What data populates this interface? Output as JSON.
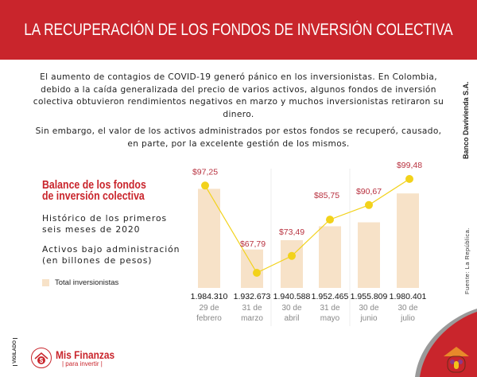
{
  "header": {
    "title": "LA RECUPERACIÓN DE LOS FONDOS DE INVERSIÓN COLECTIVA"
  },
  "intro": {
    "paragraph1": "El aumento de contagios de COVID-19 generó pánico en los inversionistas. En Colombia, debido a la caída generalizada del precio de varios activos, algunos fondos de inversión colectiva obtuvieron rendimientos negativos en marzo y muchos inversionistas retiraron su dinero.",
    "paragraph2": "Sin embargo, el valor de los activos administrados por estos fondos se recuperó, causado, en parte, por la excelente gestión de los mismos."
  },
  "side": {
    "bank": "Banco Davivienda S.A.",
    "source": "Fuente: La República.",
    "vigilado": "VIGILADO"
  },
  "left": {
    "title_line1": "Balance de los fondos",
    "title_line2": "de inversión colectiva",
    "text1_line1": "Histórico de los primeros",
    "text1_line2": "seis meses de 2020",
    "text2_line1": "Activos bajo administración",
    "text2_line2": "(en billones de pesos)",
    "legend": "Total inversionistas"
  },
  "brand": {
    "name": "Mis Finanzas",
    "sub": "|  para invertir  |"
  },
  "colors": {
    "accent": "#c9252c",
    "bar": "#f7e2c8",
    "line": "#f2d21b",
    "value_label": "#b8313f"
  },
  "chart_data": {
    "type": "bar",
    "categories": [
      [
        "29 de",
        "febrero"
      ],
      [
        "31 de",
        "marzo"
      ],
      [
        "30 de",
        "abril"
      ],
      [
        "31 de",
        "mayo"
      ],
      [
        "30 de",
        "junio"
      ],
      [
        "30 de",
        "julio"
      ]
    ],
    "series": [
      {
        "name": "Total inversionistas",
        "type": "bar",
        "values": [
          1984310,
          1932673,
          1940588,
          1952465,
          1955809,
          1980401
        ],
        "labels": [
          "1.984.310",
          "1.932.673",
          "1.940.588",
          "1.952.465",
          "1.955.809",
          "1.980.401"
        ],
        "ylim": [
          1900000,
          1990000
        ]
      },
      {
        "type": "line",
        "values": [
          97.25,
          67.79,
          73.49,
          85.75,
          90.67,
          99.48
        ],
        "labels": [
          "$97,25",
          "$67,79",
          "$73,49",
          "$85,75",
          "$90,67",
          "$99,48"
        ],
        "ylim": [
          40,
          105
        ]
      }
    ],
    "grid": false,
    "legend": "left"
  }
}
